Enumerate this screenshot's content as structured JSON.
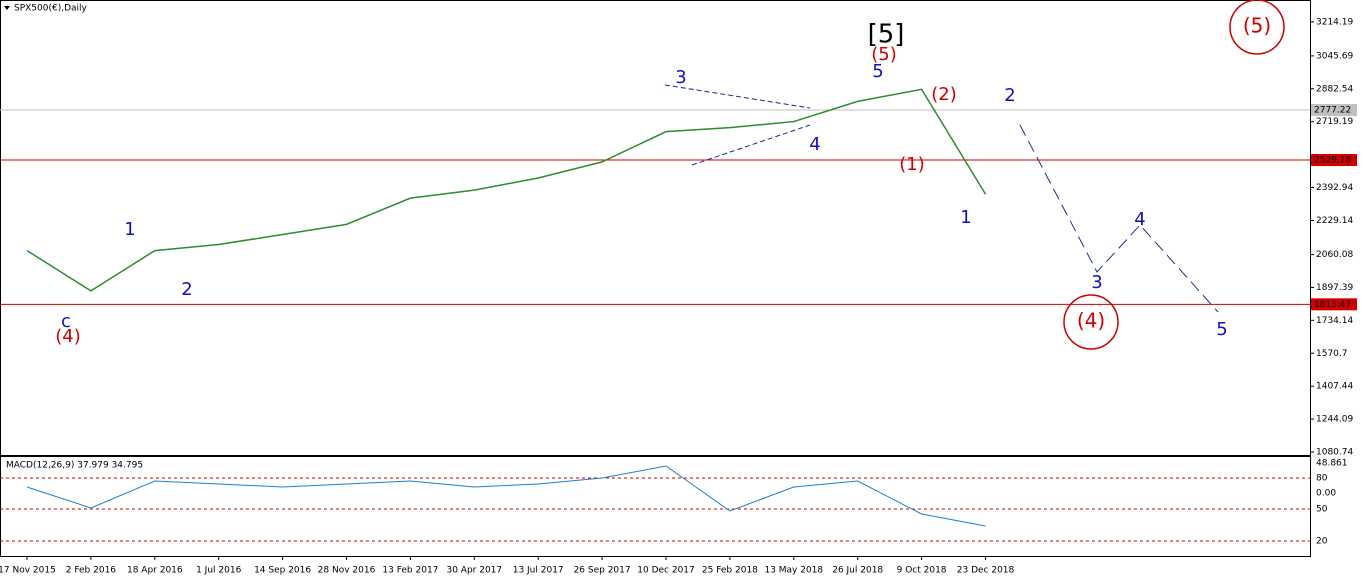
{
  "chart_data": {
    "type": "line",
    "title": "SPX500(€),Daily",
    "categories": [
      "17 Nov 2015",
      "2 Feb 2016",
      "18 Apr 2016",
      "1 Jul 2016",
      "14 Sep 2016",
      "28 Nov 2016",
      "13 Feb 2017",
      "30 Apr 2017",
      "13 Jul 2017",
      "26 Sep 2017",
      "10 Dec 2017",
      "25 Feb 2018",
      "13 May 2018",
      "26 Jul 2018",
      "9 Oct 2018",
      "23 Dec 2018"
    ],
    "series": [
      {
        "name": "SPX500",
        "color": "#2e8b2e",
        "values": [
          2080,
          1880,
          2080,
          2110,
          2160,
          2210,
          2340,
          2380,
          2440,
          2520,
          2670,
          2690,
          2720,
          2820,
          2880,
          2360
        ]
      }
    ],
    "ylim": [
      1066,
      3323
    ],
    "yticks": [
      3214.19,
      3045.69,
      2882.54,
      2719.19,
      2392.94,
      2229.14,
      2060.08,
      1897.39,
      1734.14,
      1570.7,
      1407.44,
      1244.09,
      1080.74
    ],
    "levels": [
      {
        "value": 2777.22,
        "color": "#c0c0c0"
      },
      {
        "value": 2529.18,
        "color": "#d00000"
      },
      {
        "value": 1813.47,
        "color": "#d00000"
      }
    ],
    "annotations": [
      {
        "text": "[5]",
        "color": "#000000"
      },
      {
        "text": "(5)",
        "color": "#d00000"
      },
      {
        "text": "5",
        "color": "#1010c0"
      },
      {
        "text": "3",
        "color": "#1010c0"
      },
      {
        "text": "4",
        "color": "#1010c0"
      },
      {
        "text": "(2)",
        "color": "#d00000"
      },
      {
        "text": "2",
        "color": "#1010c0"
      },
      {
        "text": "(1)",
        "color": "#d00000"
      },
      {
        "text": "1",
        "color": "#1010c0"
      },
      {
        "text": "1",
        "color": "#1010c0"
      },
      {
        "text": "2",
        "color": "#1010c0"
      },
      {
        "text": "c",
        "color": "#1010c0"
      },
      {
        "text": "(4)",
        "color": "#d00000"
      },
      {
        "text": "3",
        "color": "#1010c0"
      },
      {
        "text": "4",
        "color": "#1010c0"
      },
      {
        "text": "5",
        "color": "#1010c0"
      },
      {
        "text": "(4)",
        "color": "#d00000"
      },
      {
        "text": "(5)",
        "color": "#d00000"
      }
    ],
    "macd": {
      "title": "MACD(12,26,9) 37.979 34.795",
      "color": "#1e7fd0",
      "values": [
        10,
        -25,
        20,
        15,
        10,
        15,
        20,
        10,
        15,
        25,
        45,
        -30,
        10,
        20,
        -35,
        -55
      ],
      "ylim": [
        -60,
        60
      ],
      "tick_labels": [
        "48.861",
        "80",
        "0.00",
        "50",
        "20"
      ]
    }
  }
}
